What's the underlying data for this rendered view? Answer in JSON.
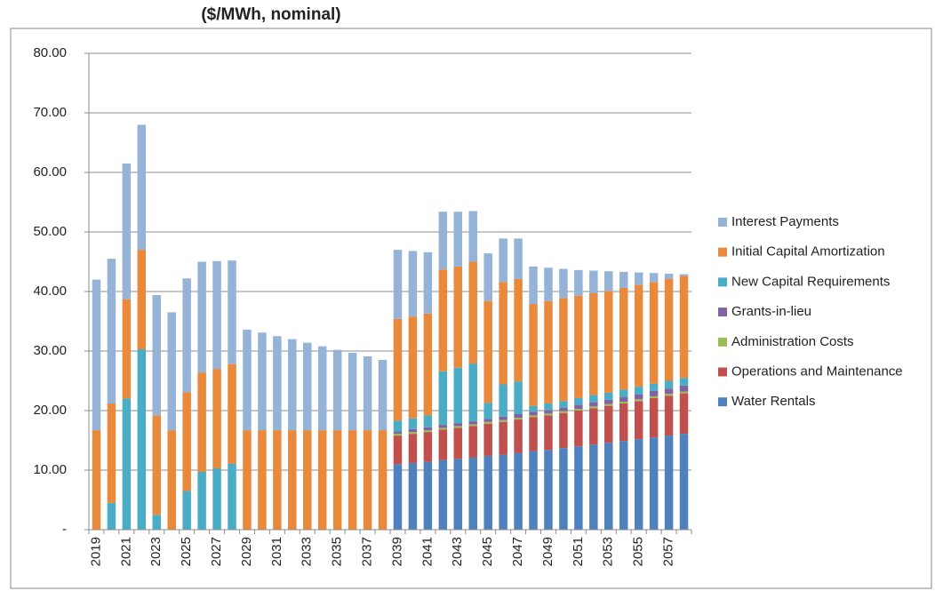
{
  "chart_data": {
    "type": "stacked_bar",
    "title": "($/MWh, nominal)",
    "categories": [
      "2019",
      null,
      "2021",
      null,
      "2023",
      null,
      "2025",
      null,
      "2027",
      null,
      "2029",
      null,
      "2031",
      null,
      "2033",
      null,
      "2035",
      null,
      "2037",
      null,
      "2039",
      null,
      "2041",
      null,
      "2043",
      null,
      "2045",
      null,
      "2047",
      null,
      "2049",
      null,
      "2051",
      null,
      "2053",
      null,
      "2055",
      null,
      "2057",
      null
    ],
    "series": [
      {
        "name": "Water Rentals",
        "color": "#4f81bd",
        "values": [
          0,
          0,
          0,
          0,
          0,
          0,
          0,
          0,
          0,
          0,
          0,
          0,
          0,
          0,
          0,
          0,
          0,
          0,
          0,
          0,
          11,
          11.2,
          11.4,
          11.7,
          11.9,
          12.1,
          12.4,
          12.6,
          12.9,
          13.2,
          13.4,
          13.7,
          14,
          14.3,
          14.6,
          14.9,
          15.2,
          15.5,
          15.8,
          16.1
        ]
      },
      {
        "name": "Operations and Maintenance",
        "color": "#c0504d",
        "values": [
          0,
          0,
          0,
          0,
          0,
          0,
          0,
          0,
          0,
          0,
          0,
          0,
          0,
          0,
          0,
          0,
          0,
          0,
          0,
          0,
          4.8,
          4.9,
          5,
          5.1,
          5.2,
          5.3,
          5.4,
          5.5,
          5.6,
          5.7,
          5.8,
          5.9,
          6,
          6.1,
          6.2,
          6.3,
          6.4,
          6.6,
          6.7,
          6.8
        ]
      },
      {
        "name": "Administration Costs",
        "color": "#9bbb59",
        "values": [
          0,
          0,
          0,
          0,
          0,
          0,
          0,
          0,
          0,
          0,
          0,
          0,
          0,
          0,
          0,
          0,
          0,
          0,
          0,
          0,
          0.3,
          0.3,
          0.3,
          0.3,
          0.3,
          0.3,
          0.3,
          0.3,
          0.3,
          0.3,
          0.3,
          0.3,
          0.3,
          0.3,
          0.3,
          0.3,
          0.3,
          0.3,
          0.3,
          0.3
        ]
      },
      {
        "name": "Grants-in-lieu",
        "color": "#8064a2",
        "values": [
          0,
          0,
          0,
          0,
          0,
          0,
          0,
          0,
          0,
          0,
          0,
          0,
          0,
          0,
          0,
          0,
          0,
          0,
          0,
          0,
          0.4,
          0.5,
          0.5,
          0.5,
          0.5,
          0.5,
          0.5,
          0.6,
          0.6,
          0.6,
          0.6,
          0.6,
          0.7,
          0.7,
          0.7,
          0.8,
          0.8,
          0.9,
          0.9,
          1
        ]
      },
      {
        "name": "New Capital Requirements",
        "color": "#4bacc6",
        "values": [
          0,
          4.5,
          22,
          30.3,
          2.5,
          0,
          6.5,
          9.7,
          10.3,
          11.1,
          0,
          0,
          0,
          0,
          0,
          0,
          0,
          0,
          0,
          0,
          1.8,
          1.8,
          2,
          9,
          9.3,
          9.7,
          2.7,
          5.4,
          5.5,
          1,
          1.1,
          1.1,
          1.1,
          1.2,
          1.2,
          1.2,
          1.3,
          1.2,
          1.3,
          1.3
        ]
      },
      {
        "name": "Initial Capital Amortization",
        "color": "#e9893c",
        "values": [
          16.7,
          16.7,
          16.7,
          16.7,
          16.7,
          16.7,
          16.6,
          16.7,
          16.7,
          16.7,
          16.7,
          16.7,
          16.7,
          16.7,
          16.7,
          16.7,
          16.7,
          16.7,
          16.7,
          16.7,
          17.1,
          17.1,
          17.1,
          17.1,
          17,
          17.1,
          17.1,
          17.2,
          17.2,
          17.1,
          17.2,
          17.3,
          17.2,
          17.1,
          17.1,
          17.1,
          17.1,
          17.1,
          17.1,
          17.1
        ]
      },
      {
        "name": "Interest Payments",
        "color": "#95b3d7",
        "values": [
          25.3,
          24.3,
          22.8,
          21,
          20.2,
          19.8,
          19.1,
          18.6,
          18.1,
          17.4,
          16.9,
          16.4,
          15.8,
          15.3,
          14.7,
          14.1,
          13.5,
          13,
          12.4,
          11.8,
          11.6,
          11,
          10.3,
          9.7,
          9.2,
          8.5,
          8,
          7.3,
          6.8,
          6.3,
          5.6,
          4.9,
          4.3,
          3.8,
          3.3,
          2.7,
          2.1,
          1.5,
          0.9,
          0.3
        ]
      }
    ],
    "ylim": [
      0,
      80
    ],
    "yticks": [
      {
        "value": 0,
        "label": "-"
      },
      {
        "value": 10,
        "label": "10.00"
      },
      {
        "value": 20,
        "label": "20.00"
      },
      {
        "value": 30,
        "label": "30.00"
      },
      {
        "value": 40,
        "label": "40.00"
      },
      {
        "value": 50,
        "label": "50.00"
      },
      {
        "value": 60,
        "label": "60.00"
      },
      {
        "value": 70,
        "label": "70.00"
      },
      {
        "value": 80,
        "label": "80.00"
      }
    ],
    "grid": true,
    "legend": "right"
  }
}
